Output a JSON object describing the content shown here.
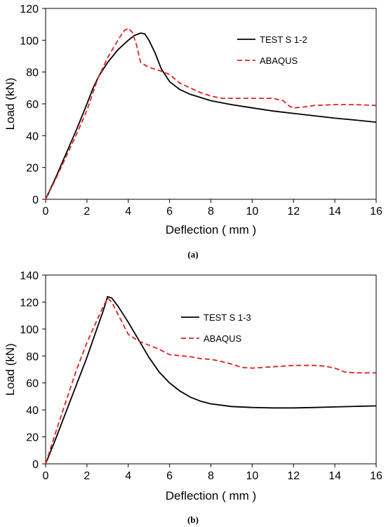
{
  "chart_data": [
    {
      "type": "line",
      "caption": "(a)",
      "xlabel": "Deflection ( mm )",
      "ylabel": "Load (kN)",
      "xlim": [
        0,
        16
      ],
      "ylim": [
        0,
        120
      ],
      "xticks": [
        0,
        2,
        4,
        6,
        8,
        10,
        12,
        14,
        16
      ],
      "yticks": [
        0,
        20,
        40,
        60,
        80,
        100,
        120
      ],
      "grid": false,
      "legend_position": "top-right",
      "series": [
        {
          "name": "TEST S 1-2",
          "color": "#000000",
          "style": "solid",
          "x": [
            0,
            0.5,
            1,
            1.5,
            2,
            2.3,
            2.6,
            3,
            3.5,
            4,
            4.3,
            4.6,
            4.8,
            5.0,
            5.3,
            5.6,
            6,
            6.5,
            7,
            8,
            9,
            10,
            11,
            12,
            13,
            14,
            15,
            16
          ],
          "y": [
            0,
            14,
            29,
            44,
            60,
            70,
            78,
            86,
            94,
            100,
            103,
            104.5,
            104,
            100,
            92,
            82,
            74,
            69,
            66,
            62,
            59.5,
            57.5,
            55.5,
            54,
            52.5,
            51,
            49.8,
            48.5
          ]
        },
        {
          "name": "ABAQUS",
          "color": "#e02020",
          "style": "dashed",
          "x": [
            0,
            0.5,
            1,
            1.5,
            2,
            2.5,
            3,
            3.5,
            3.8,
            4.0,
            4.2,
            4.4,
            4.6,
            5.0,
            5.5,
            6,
            6.5,
            7,
            7.5,
            8,
            8.5,
            9,
            10,
            11,
            11.5,
            11.8,
            12,
            12.5,
            13,
            14,
            15,
            16
          ],
          "y": [
            0,
            13,
            27,
            41,
            56,
            75,
            89,
            100,
            106,
            107.5,
            105,
            97,
            86,
            83,
            81,
            78.5,
            73,
            70,
            67,
            65,
            63.5,
            63.5,
            63.5,
            63.5,
            62,
            58.5,
            57.5,
            58,
            59,
            59.5,
            59.5,
            59
          ]
        }
      ]
    },
    {
      "type": "line",
      "caption": "(b)",
      "xlabel": "Deflection ( mm )",
      "ylabel": "Load (kN)",
      "xlim": [
        0,
        16
      ],
      "ylim": [
        0,
        140
      ],
      "xticks": [
        0,
        2,
        4,
        6,
        8,
        10,
        12,
        14,
        16
      ],
      "yticks": [
        0,
        20,
        40,
        60,
        80,
        100,
        120,
        140
      ],
      "grid": false,
      "legend_position": "top-right",
      "series": [
        {
          "name": "TEST S 1-3",
          "color": "#000000",
          "style": "solid",
          "x": [
            0,
            0.5,
            1,
            1.5,
            2,
            2.5,
            2.8,
            3.0,
            3.2,
            3.5,
            4,
            4.5,
            5,
            5.5,
            6,
            6.5,
            7,
            7.5,
            8,
            9,
            10,
            11,
            12,
            13,
            14,
            15,
            16
          ],
          "y": [
            0,
            19,
            39,
            59,
            79,
            101,
            114,
            124,
            123,
            117,
            105,
            92,
            79,
            68,
            60,
            54,
            49.5,
            46.5,
            44.5,
            42.5,
            41.8,
            41.5,
            41.5,
            41.8,
            42.2,
            42.6,
            43
          ]
        },
        {
          "name": "ABAQUS",
          "color": "#e02020",
          "style": "dashed",
          "x": [
            0,
            0.5,
            1,
            1.5,
            2,
            2.5,
            2.8,
            3.0,
            3.2,
            3.5,
            4,
            4.5,
            5,
            5.5,
            6,
            7,
            7.5,
            8,
            8.5,
            9,
            9.5,
            10,
            11,
            12,
            13,
            13.5,
            14,
            14.5,
            15,
            16
          ],
          "y": [
            0,
            24,
            47,
            70,
            90,
            107,
            117,
            123,
            120,
            111,
            96,
            91,
            88,
            85,
            81,
            79.5,
            78,
            77.5,
            76,
            74,
            71.5,
            71,
            72,
            73,
            73,
            72.5,
            71,
            68,
            67.5,
            67.5
          ]
        }
      ]
    }
  ]
}
